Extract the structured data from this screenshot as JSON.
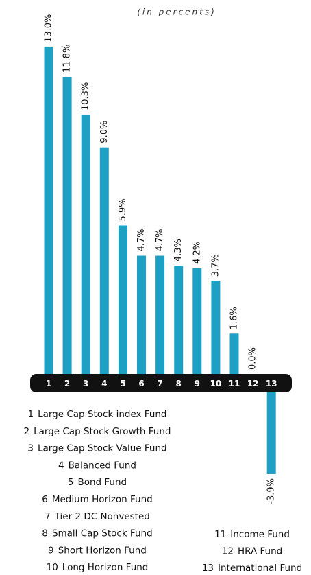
{
  "chart_data": {
    "type": "bar",
    "subtitle": "(in percents)",
    "categories": [
      "1",
      "2",
      "3",
      "4",
      "5",
      "6",
      "7",
      "8",
      "9",
      "10",
      "11",
      "12",
      "13"
    ],
    "fund_names": [
      "Large Cap Stock index Fund",
      "Large Cap Stock Growth Fund",
      "Large Cap Stock Value Fund",
      "Balanced Fund",
      "Bond Fund",
      "Medium Horizon Fund",
      "Tier 2 DC Nonvested",
      "Small Cap Stock Fund",
      "Short Horizon Fund",
      "Long Horizon Fund",
      "Income Fund",
      "HRA Fund",
      "International Fund"
    ],
    "values": [
      13.0,
      11.8,
      10.3,
      9.0,
      5.9,
      4.7,
      4.7,
      4.3,
      4.2,
      3.7,
      1.6,
      0.0,
      -3.9
    ],
    "value_labels": [
      "13.0%",
      "11.8%",
      "10.3%",
      "9.0%",
      "5.9%",
      "4.7%",
      "4.7%",
      "4.3%",
      "4.2%",
      "3.7%",
      "1.6%",
      "0.0%",
      "-3.9%"
    ],
    "color": "#1ea0c4"
  }
}
